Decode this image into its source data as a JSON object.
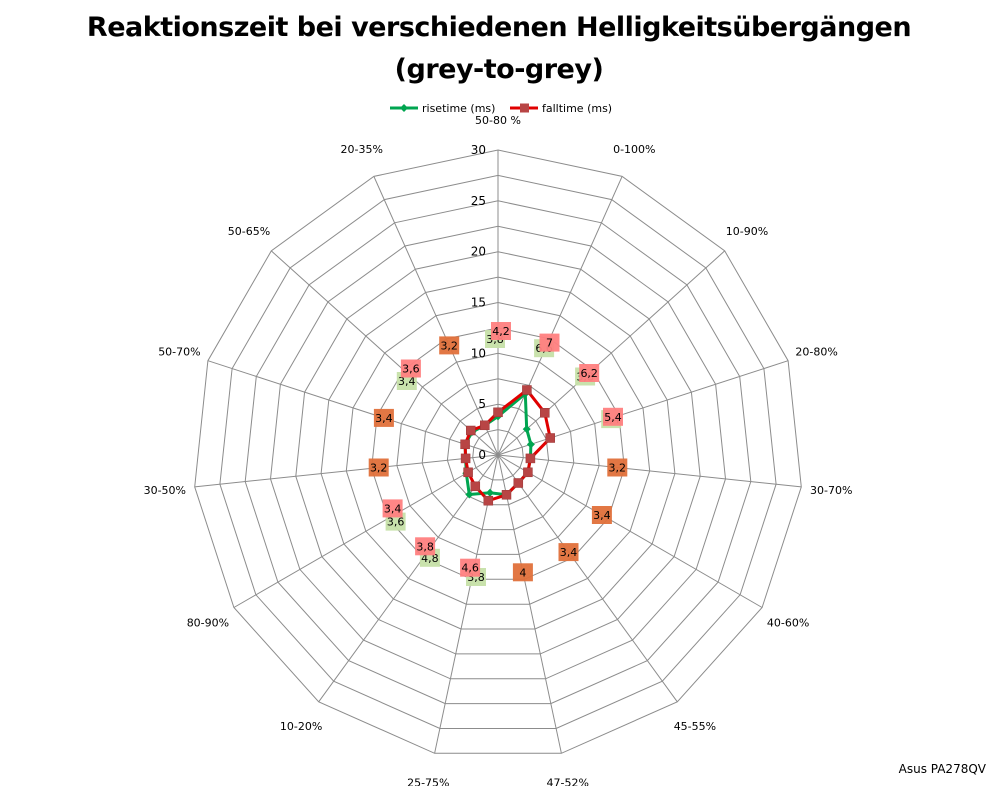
{
  "chart_data": {
    "type": "radar",
    "title_line1": "Reaktionszeit bei verschiedenen Helligkeitsübergängen",
    "title_line2": "(grey-to-grey)",
    "source_label": "Asus PA278QV",
    "categories": [
      "50-80 %",
      "0-100%",
      "10-90%",
      "20-80%",
      "30-70%",
      "40-60%",
      "45-55%",
      "47-52%",
      "25-75%",
      "10-20%",
      "80-90%",
      "30-50%",
      "50-70%",
      "50-65%",
      "20-35%"
    ],
    "radial_ticks": [
      "0",
      "5",
      "10",
      "15",
      "20",
      "25",
      "30"
    ],
    "rmax": 30,
    "series": [
      {
        "name": "risetime (ms)",
        "color": "#00a550",
        "marker": "diamond",
        "values": [
          3.8,
          6.6,
          3.8,
          3.4,
          3.2,
          3.4,
          3.4,
          4,
          3.8,
          4.8,
          3.6,
          3.2,
          3.4,
          3.4,
          3.2
        ],
        "labels": [
          "3,8",
          "6,6",
          "3,8",
          "3,4",
          "3,2",
          "3,4",
          "3,4",
          "4",
          "3,8",
          "4,8",
          "3,6",
          "3,2",
          "3,4",
          "3,4",
          "3,2"
        ],
        "label_color": "#c6e0a8"
      },
      {
        "name": "falltime (ms)",
        "color": "#e00000",
        "marker": "square",
        "values": [
          4.2,
          7,
          6.2,
          5.4,
          3.2,
          3.4,
          3.4,
          4,
          4.6,
          3.8,
          3.4,
          3.2,
          3.4,
          3.6,
          3.2
        ],
        "labels": [
          "4,2",
          "7",
          "6,2",
          "5,4",
          "3,2",
          "3,4",
          "3,4",
          "4",
          "4,6",
          "3,8",
          "3,4",
          "3,2",
          "3,4",
          "3,6",
          "3,2"
        ],
        "label_color": "#ff8080"
      }
    ]
  }
}
